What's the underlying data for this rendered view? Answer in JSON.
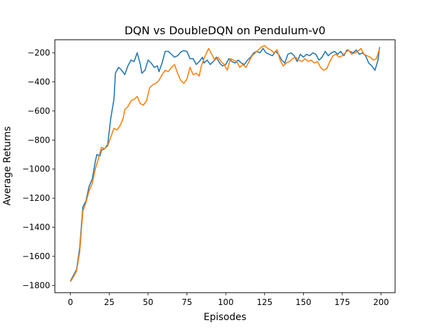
{
  "chart_data": {
    "type": "line",
    "title": "DQN vs DoubleDQN on Pendulum-v0",
    "xlabel": "Episodes",
    "ylabel": "Average Returns",
    "xlim": [
      -10,
      209
    ],
    "ylim": [
      -1850,
      -110
    ],
    "xticks": [
      0,
      25,
      50,
      75,
      100,
      125,
      150,
      175,
      200
    ],
    "yticks": [
      -1800,
      -1600,
      -1400,
      -1200,
      -1000,
      -800,
      -600,
      -400,
      -200
    ],
    "grid": false,
    "legend": "none",
    "series": [
      {
        "color": "#1f77b4",
        "points": [
          [
            0,
            -1770
          ],
          [
            2,
            -1730
          ],
          [
            4,
            -1690
          ],
          [
            6,
            -1540
          ],
          [
            8,
            -1260
          ],
          [
            10,
            -1220
          ],
          [
            12,
            -1120
          ],
          [
            14,
            -1070
          ],
          [
            16,
            -950
          ],
          [
            17,
            -900
          ],
          [
            19,
            -910
          ],
          [
            20,
            -870
          ],
          [
            22,
            -860
          ],
          [
            24,
            -830
          ],
          [
            26,
            -650
          ],
          [
            28,
            -520
          ],
          [
            29,
            -340
          ],
          [
            31,
            -300
          ],
          [
            33,
            -320
          ],
          [
            35,
            -350
          ],
          [
            37,
            -290
          ],
          [
            39,
            -250
          ],
          [
            41,
            -260
          ],
          [
            43,
            -200
          ],
          [
            45,
            -280
          ],
          [
            46,
            -340
          ],
          [
            48,
            -320
          ],
          [
            50,
            -250
          ],
          [
            52,
            -270
          ],
          [
            54,
            -300
          ],
          [
            56,
            -290
          ],
          [
            57,
            -330
          ],
          [
            59,
            -270
          ],
          [
            61,
            -190
          ],
          [
            63,
            -190
          ],
          [
            65,
            -210
          ],
          [
            67,
            -230
          ],
          [
            69,
            -220
          ],
          [
            71,
            -195
          ],
          [
            73,
            -185
          ],
          [
            75,
            -190
          ],
          [
            77,
            -240
          ],
          [
            79,
            -240
          ],
          [
            81,
            -280
          ],
          [
            83,
            -260
          ],
          [
            85,
            -230
          ],
          [
            86,
            -270
          ],
          [
            88,
            -250
          ],
          [
            90,
            -280
          ],
          [
            92,
            -260
          ],
          [
            94,
            -230
          ],
          [
            96,
            -270
          ],
          [
            98,
            -290
          ],
          [
            100,
            -280
          ],
          [
            102,
            -240
          ],
          [
            104,
            -260
          ],
          [
            106,
            -270
          ],
          [
            108,
            -250
          ],
          [
            110,
            -270
          ],
          [
            112,
            -280
          ],
          [
            114,
            -250
          ],
          [
            116,
            -230
          ],
          [
            118,
            -200
          ],
          [
            120,
            -190
          ],
          [
            122,
            -200
          ],
          [
            124,
            -170
          ],
          [
            126,
            -200
          ],
          [
            128,
            -210
          ],
          [
            130,
            -220
          ],
          [
            132,
            -190
          ],
          [
            134,
            -210
          ],
          [
            136,
            -250
          ],
          [
            138,
            -270
          ],
          [
            140,
            -210
          ],
          [
            142,
            -200
          ],
          [
            144,
            -220
          ],
          [
            146,
            -260
          ],
          [
            148,
            -210
          ],
          [
            150,
            -230
          ],
          [
            152,
            -210
          ],
          [
            154,
            -220
          ],
          [
            156,
            -200
          ],
          [
            158,
            -210
          ],
          [
            160,
            -250
          ],
          [
            162,
            -230
          ],
          [
            164,
            -190
          ],
          [
            166,
            -220
          ],
          [
            168,
            -200
          ],
          [
            170,
            -190
          ],
          [
            172,
            -210
          ],
          [
            174,
            -190
          ],
          [
            176,
            -220
          ],
          [
            178,
            -180
          ],
          [
            180,
            -190
          ],
          [
            182,
            -200
          ],
          [
            184,
            -180
          ],
          [
            186,
            -210
          ],
          [
            188,
            -200
          ],
          [
            190,
            -220
          ],
          [
            192,
            -270
          ],
          [
            194,
            -290
          ],
          [
            196,
            -320
          ],
          [
            198,
            -250
          ],
          [
            199,
            -160
          ]
        ]
      },
      {
        "color": "#ff7f0e",
        "points": [
          [
            0,
            -1775
          ],
          [
            2,
            -1740
          ],
          [
            4,
            -1700
          ],
          [
            6,
            -1570
          ],
          [
            8,
            -1290
          ],
          [
            10,
            -1230
          ],
          [
            12,
            -1150
          ],
          [
            14,
            -1100
          ],
          [
            16,
            -1000
          ],
          [
            18,
            -930
          ],
          [
            20,
            -850
          ],
          [
            22,
            -860
          ],
          [
            24,
            -840
          ],
          [
            26,
            -780
          ],
          [
            28,
            -720
          ],
          [
            30,
            -730
          ],
          [
            32,
            -700
          ],
          [
            34,
            -650
          ],
          [
            35,
            -590
          ],
          [
            37,
            -570
          ],
          [
            39,
            -530
          ],
          [
            41,
            -520
          ],
          [
            43,
            -500
          ],
          [
            45,
            -550
          ],
          [
            47,
            -560
          ],
          [
            49,
            -530
          ],
          [
            51,
            -440
          ],
          [
            53,
            -420
          ],
          [
            55,
            -410
          ],
          [
            57,
            -390
          ],
          [
            59,
            -350
          ],
          [
            61,
            -320
          ],
          [
            63,
            -330
          ],
          [
            65,
            -300
          ],
          [
            67,
            -280
          ],
          [
            69,
            -340
          ],
          [
            71,
            -390
          ],
          [
            73,
            -410
          ],
          [
            75,
            -380
          ],
          [
            77,
            -300
          ],
          [
            79,
            -350
          ],
          [
            81,
            -340
          ],
          [
            83,
            -360
          ],
          [
            84,
            -300
          ],
          [
            86,
            -240
          ],
          [
            88,
            -190
          ],
          [
            89,
            -170
          ],
          [
            91,
            -210
          ],
          [
            93,
            -250
          ],
          [
            95,
            -230
          ],
          [
            97,
            -260
          ],
          [
            99,
            -280
          ],
          [
            101,
            -320
          ],
          [
            103,
            -240
          ],
          [
            105,
            -250
          ],
          [
            107,
            -260
          ],
          [
            109,
            -300
          ],
          [
            111,
            -280
          ],
          [
            113,
            -300
          ],
          [
            115,
            -260
          ],
          [
            117,
            -220
          ],
          [
            119,
            -200
          ],
          [
            121,
            -180
          ],
          [
            123,
            -160
          ],
          [
            125,
            -150
          ],
          [
            127,
            -170
          ],
          [
            129,
            -180
          ],
          [
            131,
            -200
          ],
          [
            133,
            -180
          ],
          [
            135,
            -250
          ],
          [
            137,
            -290
          ],
          [
            139,
            -270
          ],
          [
            141,
            -260
          ],
          [
            143,
            -240
          ],
          [
            145,
            -230
          ],
          [
            147,
            -250
          ],
          [
            149,
            -260
          ],
          [
            151,
            -240
          ],
          [
            153,
            -260
          ],
          [
            155,
            -250
          ],
          [
            157,
            -270
          ],
          [
            159,
            -260
          ],
          [
            161,
            -300
          ],
          [
            163,
            -320
          ],
          [
            165,
            -310
          ],
          [
            167,
            -260
          ],
          [
            169,
            -220
          ],
          [
            171,
            -210
          ],
          [
            173,
            -230
          ],
          [
            175,
            -220
          ],
          [
            177,
            -200
          ],
          [
            179,
            -180
          ],
          [
            181,
            -210
          ],
          [
            183,
            -200
          ],
          [
            185,
            -190
          ],
          [
            187,
            -170
          ],
          [
            189,
            -210
          ],
          [
            191,
            -220
          ],
          [
            193,
            -230
          ],
          [
            195,
            -250
          ],
          [
            197,
            -240
          ],
          [
            199,
            -170
          ]
        ]
      }
    ]
  }
}
